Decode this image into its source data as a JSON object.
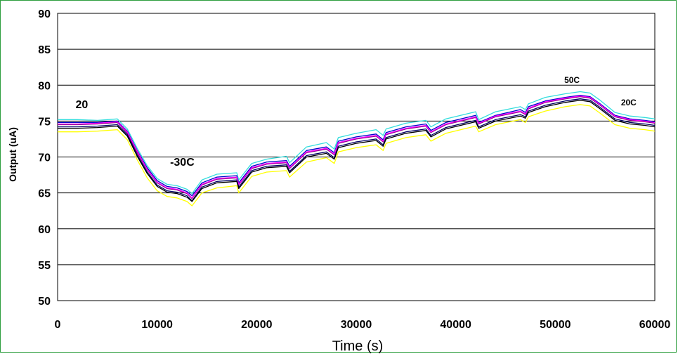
{
  "chart_data": {
    "type": "line",
    "title": "",
    "xlabel": "Time (s)",
    "ylabel": "Output (uA)",
    "xlim": [
      0,
      60000
    ],
    "ylim": [
      50,
      90
    ],
    "xticks": [
      0,
      10000,
      20000,
      30000,
      40000,
      50000,
      60000
    ],
    "yticks": [
      50,
      55,
      60,
      65,
      70,
      75,
      80,
      85,
      90
    ],
    "grid": "horizontal",
    "legend": "none",
    "annotations": [
      {
        "text": "20",
        "x": 1800,
        "y": 76.8
      },
      {
        "text": "-30C",
        "x": 11300,
        "y": 68.8
      },
      {
        "text": "50C",
        "x": 50900,
        "y": 80.3
      },
      {
        "text": "20C",
        "x": 56600,
        "y": 77.2
      }
    ],
    "x": [
      0,
      2000,
      4000,
      6000,
      7000,
      8000,
      9000,
      10000,
      11000,
      12000,
      13000,
      13500,
      14500,
      16000,
      18000,
      18200,
      19500,
      21000,
      23000,
      23300,
      25000,
      27000,
      27800,
      28200,
      30000,
      32000,
      32700,
      33000,
      35000,
      37000,
      37500,
      39000,
      42000,
      42300,
      44000,
      46500,
      47000,
      47300,
      49000,
      51000,
      52500,
      53500,
      54500,
      56000,
      57500,
      59000,
      60000
    ],
    "series": [
      {
        "color": "#33dddd",
        "values": [
          75.2,
          75.2,
          75.1,
          75.3,
          73.9,
          71.2,
          68.8,
          67.0,
          66.2,
          66.0,
          65.5,
          64.9,
          66.8,
          67.6,
          67.8,
          66.8,
          69.1,
          69.7,
          70.1,
          69.2,
          71.4,
          72.0,
          71.1,
          72.7,
          73.3,
          73.8,
          73.0,
          73.9,
          74.7,
          75.1,
          74.2,
          75.3,
          76.3,
          75.2,
          76.3,
          77.0,
          76.6,
          77.4,
          78.3,
          78.8,
          79.1,
          78.9,
          77.9,
          76.2,
          75.7,
          75.5,
          75.3
        ]
      },
      {
        "color": "#0000cc",
        "values": [
          74.8,
          74.8,
          74.8,
          75.0,
          73.6,
          70.9,
          68.5,
          66.7,
          65.9,
          65.7,
          65.2,
          64.6,
          66.4,
          67.2,
          67.4,
          66.4,
          68.7,
          69.3,
          69.5,
          68.7,
          70.9,
          71.4,
          70.6,
          72.2,
          72.8,
          73.2,
          72.4,
          73.4,
          74.2,
          74.6,
          73.7,
          74.8,
          75.8,
          74.8,
          75.8,
          76.6,
          76.2,
          77.0,
          77.8,
          78.3,
          78.6,
          78.4,
          77.4,
          75.8,
          75.3,
          75.1,
          74.9
        ]
      },
      {
        "color": "#880088",
        "values": [
          74.5,
          74.5,
          74.6,
          74.8,
          73.3,
          70.6,
          68.2,
          66.4,
          65.6,
          65.4,
          64.9,
          64.2,
          66.1,
          66.9,
          67.1,
          66.1,
          68.4,
          69.0,
          69.2,
          68.4,
          70.6,
          71.1,
          70.3,
          71.9,
          72.5,
          72.9,
          72.1,
          73.1,
          73.9,
          74.3,
          73.4,
          74.5,
          75.5,
          74.6,
          75.6,
          76.3,
          75.9,
          76.7,
          77.6,
          78.1,
          78.4,
          78.2,
          77.2,
          75.6,
          75.1,
          74.9,
          74.7
        ]
      },
      {
        "color": "#ff00ff",
        "values": [
          74.6,
          74.6,
          74.7,
          74.9,
          73.5,
          70.8,
          68.3,
          66.5,
          65.7,
          65.5,
          65.0,
          64.3,
          66.2,
          67.0,
          67.2,
          66.2,
          68.5,
          69.1,
          69.3,
          68.5,
          70.7,
          71.2,
          70.4,
          72.0,
          72.6,
          73.0,
          72.2,
          73.2,
          74.0,
          74.4,
          73.5,
          74.6,
          75.6,
          74.7,
          75.7,
          76.4,
          76.0,
          76.8,
          77.7,
          78.2,
          78.5,
          78.3,
          77.3,
          75.7,
          75.2,
          75.0,
          74.8
        ]
      },
      {
        "color": "#000066",
        "values": [
          74.2,
          74.2,
          74.3,
          74.5,
          73.1,
          70.3,
          67.9,
          66.1,
          65.3,
          65.1,
          64.6,
          63.9,
          65.8,
          66.6,
          66.8,
          65.8,
          68.1,
          68.7,
          68.9,
          68.0,
          70.2,
          70.7,
          69.9,
          71.5,
          72.1,
          72.5,
          71.7,
          72.7,
          73.5,
          73.9,
          73.0,
          74.1,
          75.1,
          74.2,
          75.2,
          75.9,
          75.6,
          76.4,
          77.2,
          77.8,
          78.1,
          77.9,
          76.9,
          75.3,
          74.8,
          74.6,
          74.4
        ]
      },
      {
        "color": "#000000",
        "values": [
          74.0,
          74.0,
          74.1,
          74.3,
          72.9,
          70.1,
          67.7,
          65.9,
          65.1,
          64.9,
          64.4,
          63.8,
          65.6,
          66.4,
          66.6,
          65.6,
          67.9,
          68.5,
          68.7,
          67.8,
          70.0,
          70.5,
          69.7,
          71.3,
          71.9,
          72.3,
          71.5,
          72.5,
          73.3,
          73.7,
          72.8,
          73.9,
          74.9,
          74.0,
          75.0,
          75.7,
          75.4,
          76.2,
          77.0,
          77.6,
          77.9,
          77.7,
          76.7,
          75.1,
          74.6,
          74.4,
          74.2
        ]
      },
      {
        "color": "#ffff00",
        "values": [
          73.5,
          73.5,
          73.6,
          73.8,
          72.4,
          69.6,
          67.1,
          65.3,
          64.5,
          64.3,
          63.8,
          63.2,
          65.0,
          65.7,
          66.0,
          65.0,
          67.3,
          67.9,
          68.1,
          67.2,
          69.3,
          69.9,
          69.1,
          70.7,
          71.3,
          71.7,
          70.9,
          71.9,
          72.7,
          73.1,
          72.2,
          73.3,
          74.3,
          73.5,
          74.5,
          75.2,
          74.8,
          75.6,
          76.4,
          77.0,
          77.3,
          77.1,
          76.1,
          74.5,
          74.0,
          73.8,
          73.6
        ]
      }
    ]
  }
}
